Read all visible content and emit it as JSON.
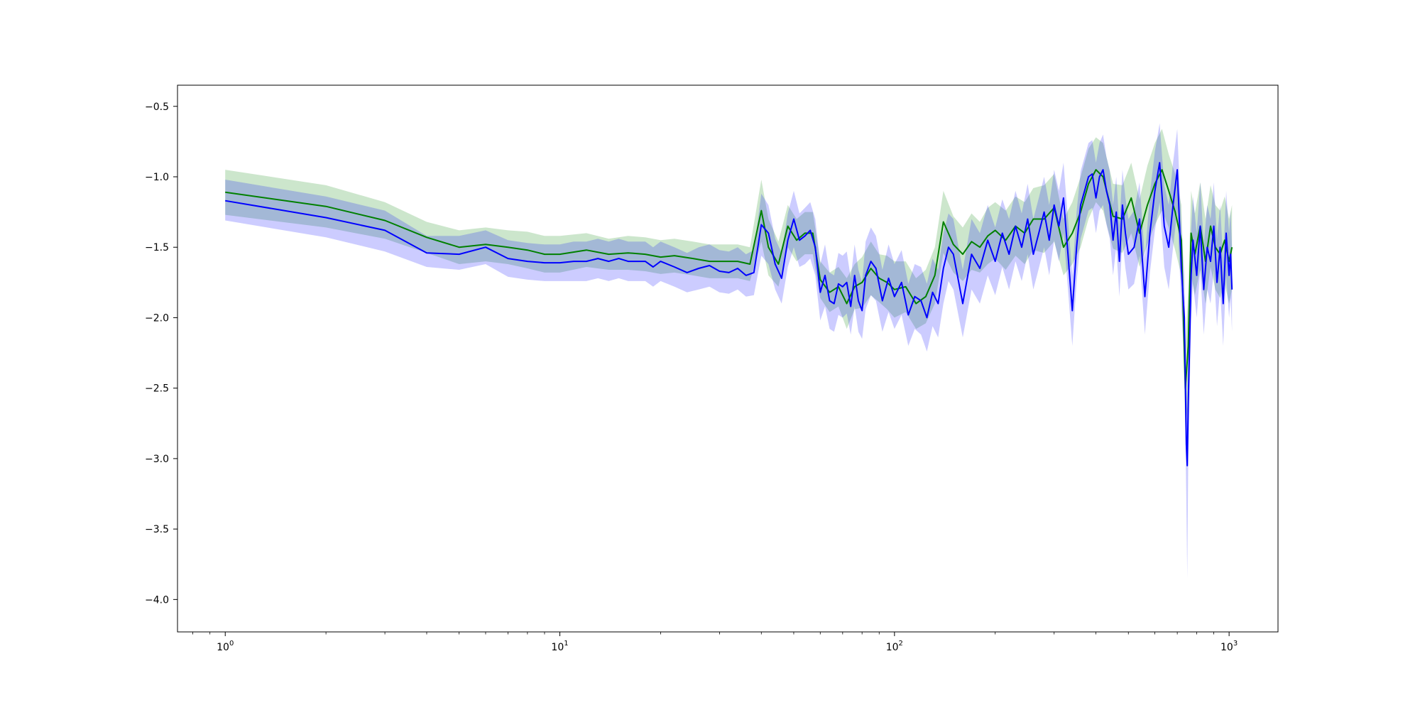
{
  "chart_data": {
    "type": "line",
    "title": "",
    "xlabel": "",
    "ylabel": "",
    "xscale": "log",
    "xlim": [
      0.72,
      1400
    ],
    "ylim": [
      -4.23,
      -0.35
    ],
    "grid": false,
    "legend": "none",
    "x_ticks": [
      {
        "value": 1,
        "base": "10",
        "exp": "0"
      },
      {
        "value": 10,
        "base": "10",
        "exp": "1"
      },
      {
        "value": 100,
        "base": "10",
        "exp": "2"
      },
      {
        "value": 1000,
        "base": "10",
        "exp": "3"
      }
    ],
    "y_ticks": [
      {
        "value": -0.5,
        "label": "−0.5"
      },
      {
        "value": -1.0,
        "label": "−1.0"
      },
      {
        "value": -1.5,
        "label": "−1.5"
      },
      {
        "value": -2.0,
        "label": "−2.0"
      },
      {
        "value": -2.5,
        "label": "−2.5"
      },
      {
        "value": -3.0,
        "label": "−3.0"
      },
      {
        "value": -3.5,
        "label": "−3.5"
      },
      {
        "value": -4.0,
        "label": "−4.0"
      }
    ],
    "series": [
      {
        "color": "#008000",
        "band_color": "#008000",
        "x": [
          1,
          2,
          3,
          4,
          5,
          6,
          7,
          8,
          9,
          10,
          12,
          14,
          16,
          18,
          20,
          22,
          25,
          28,
          31,
          34,
          37,
          40,
          42,
          45,
          48,
          51,
          54,
          57,
          60,
          64,
          68,
          72,
          76,
          80,
          85,
          90,
          95,
          100,
          108,
          116,
          124,
          132,
          140,
          150,
          160,
          170,
          180,
          190,
          200,
          215,
          230,
          245,
          260,
          280,
          300,
          320,
          340,
          360,
          380,
          400,
          420,
          450,
          480,
          510,
          540,
          570,
          600,
          630,
          660,
          690,
          720,
          740,
          755,
          770,
          790,
          820,
          850,
          880,
          910,
          940,
          970,
          1000,
          1020
        ],
        "y": [
          -1.11,
          -1.21,
          -1.31,
          -1.43,
          -1.5,
          -1.48,
          -1.5,
          -1.52,
          -1.55,
          -1.55,
          -1.52,
          -1.55,
          -1.54,
          -1.55,
          -1.57,
          -1.56,
          -1.58,
          -1.6,
          -1.6,
          -1.6,
          -1.62,
          -1.24,
          -1.5,
          -1.62,
          -1.35,
          -1.45,
          -1.4,
          -1.4,
          -1.73,
          -1.82,
          -1.78,
          -1.9,
          -1.78,
          -1.75,
          -1.65,
          -1.72,
          -1.75,
          -1.8,
          -1.78,
          -1.9,
          -1.85,
          -1.7,
          -1.32,
          -1.48,
          -1.55,
          -1.46,
          -1.5,
          -1.42,
          -1.38,
          -1.45,
          -1.35,
          -1.4,
          -1.3,
          -1.3,
          -1.22,
          -1.5,
          -1.4,
          -1.25,
          -1.05,
          -0.95,
          -1.0,
          -1.28,
          -1.3,
          -1.15,
          -1.4,
          -1.2,
          -1.05,
          -0.95,
          -1.1,
          -1.25,
          -1.45,
          -2.5,
          -2.2,
          -1.4,
          -1.55,
          -1.35,
          -1.6,
          -1.35,
          -1.5,
          -1.55,
          -1.45,
          -1.6,
          -1.5
        ],
        "upper": [
          -0.95,
          -1.06,
          -1.18,
          -1.32,
          -1.38,
          -1.36,
          -1.38,
          -1.39,
          -1.42,
          -1.42,
          -1.4,
          -1.44,
          -1.42,
          -1.43,
          -1.45,
          -1.44,
          -1.46,
          -1.48,
          -1.48,
          -1.48,
          -1.5,
          -1.02,
          -1.3,
          -1.46,
          -1.2,
          -1.3,
          -1.25,
          -1.25,
          -1.6,
          -1.68,
          -1.64,
          -1.72,
          -1.62,
          -1.57,
          -1.46,
          -1.55,
          -1.56,
          -1.6,
          -1.6,
          -1.72,
          -1.66,
          -1.5,
          -1.1,
          -1.28,
          -1.36,
          -1.26,
          -1.32,
          -1.22,
          -1.18,
          -1.24,
          -1.14,
          -1.18,
          -1.08,
          -1.06,
          -0.98,
          -1.3,
          -1.18,
          -1.0,
          -0.8,
          -0.72,
          -0.76,
          -1.05,
          -1.06,
          -0.9,
          -1.16,
          -0.92,
          -0.76,
          -0.66,
          -0.84,
          -0.98,
          -1.2,
          -2.2,
          -1.8,
          -1.1,
          -1.26,
          -1.04,
          -1.3,
          -1.06,
          -1.2,
          -1.24,
          -1.14,
          -1.3,
          -1.2
        ],
        "lower": [
          -1.27,
          -1.36,
          -1.44,
          -1.54,
          -1.62,
          -1.6,
          -1.62,
          -1.65,
          -1.68,
          -1.68,
          -1.64,
          -1.66,
          -1.66,
          -1.67,
          -1.69,
          -1.68,
          -1.7,
          -1.72,
          -1.72,
          -1.72,
          -1.74,
          -1.46,
          -1.7,
          -1.78,
          -1.5,
          -1.6,
          -1.55,
          -1.55,
          -1.86,
          -1.96,
          -1.92,
          -2.08,
          -1.94,
          -1.93,
          -1.84,
          -1.89,
          -1.94,
          -2.0,
          -1.96,
          -2.08,
          -2.04,
          -1.9,
          -1.54,
          -1.68,
          -1.74,
          -1.66,
          -1.68,
          -1.62,
          -1.58,
          -1.66,
          -1.56,
          -1.62,
          -1.52,
          -1.54,
          -1.46,
          -1.7,
          -1.62,
          -1.5,
          -1.3,
          -1.18,
          -1.24,
          -1.51,
          -1.54,
          -1.4,
          -1.64,
          -1.48,
          -1.34,
          -1.24,
          -1.36,
          -1.52,
          -1.7,
          -2.8,
          -2.6,
          -1.7,
          -1.84,
          -1.66,
          -1.9,
          -1.64,
          -1.8,
          -1.86,
          -1.76,
          -1.9,
          -1.8
        ]
      },
      {
        "color": "#0000ff",
        "band_color": "#0000ff",
        "x": [
          1,
          2,
          3,
          4,
          5,
          6,
          7,
          8,
          9,
          10,
          11,
          12,
          13,
          14,
          15,
          16,
          17,
          18,
          19,
          20,
          22,
          24,
          26,
          28,
          30,
          32,
          34,
          36,
          38,
          40,
          42,
          44,
          46,
          48,
          50,
          52,
          54,
          56,
          58,
          60,
          62,
          64,
          66,
          68,
          70,
          72,
          74,
          76,
          78,
          80,
          82,
          85,
          88,
          92,
          96,
          100,
          105,
          110,
          115,
          120,
          125,
          130,
          135,
          140,
          145,
          150,
          160,
          170,
          180,
          190,
          200,
          210,
          220,
          230,
          240,
          250,
          260,
          270,
          280,
          290,
          300,
          310,
          320,
          330,
          340,
          350,
          360,
          370,
          380,
          390,
          400,
          410,
          420,
          430,
          440,
          450,
          460,
          470,
          480,
          490,
          500,
          520,
          540,
          560,
          580,
          600,
          620,
          640,
          660,
          680,
          700,
          720,
          735,
          745,
          750,
          755,
          760,
          770,
          780,
          800,
          820,
          840,
          860,
          880,
          900,
          920,
          940,
          960,
          980,
          1000,
          1010,
          1020
        ],
        "y": [
          -1.17,
          -1.29,
          -1.38,
          -1.54,
          -1.55,
          -1.5,
          -1.58,
          -1.6,
          -1.61,
          -1.61,
          -1.6,
          -1.6,
          -1.58,
          -1.6,
          -1.58,
          -1.6,
          -1.6,
          -1.6,
          -1.64,
          -1.6,
          -1.64,
          -1.68,
          -1.65,
          -1.63,
          -1.67,
          -1.68,
          -1.65,
          -1.7,
          -1.68,
          -1.34,
          -1.4,
          -1.62,
          -1.72,
          -1.45,
          -1.3,
          -1.45,
          -1.42,
          -1.38,
          -1.5,
          -1.82,
          -1.7,
          -1.88,
          -1.9,
          -1.76,
          -1.78,
          -1.75,
          -1.92,
          -1.7,
          -1.88,
          -1.95,
          -1.7,
          -1.6,
          -1.65,
          -1.88,
          -1.72,
          -1.85,
          -1.75,
          -1.98,
          -1.85,
          -1.88,
          -2.0,
          -1.82,
          -1.9,
          -1.65,
          -1.5,
          -1.55,
          -1.9,
          -1.55,
          -1.65,
          -1.45,
          -1.6,
          -1.4,
          -1.55,
          -1.35,
          -1.5,
          -1.3,
          -1.55,
          -1.4,
          -1.25,
          -1.45,
          -1.2,
          -1.35,
          -1.15,
          -1.55,
          -1.95,
          -1.5,
          -1.2,
          -1.1,
          -1.0,
          -0.98,
          -1.15,
          -1.0,
          -0.95,
          -1.1,
          -1.2,
          -1.45,
          -1.25,
          -1.6,
          -1.2,
          -1.4,
          -1.55,
          -1.5,
          -1.3,
          -1.85,
          -1.4,
          -1.1,
          -0.9,
          -1.35,
          -1.5,
          -1.2,
          -0.95,
          -1.65,
          -2.0,
          -2.9,
          -3.05,
          -2.6,
          -2.3,
          -1.7,
          -1.45,
          -1.7,
          -1.35,
          -1.8,
          -1.5,
          -1.6,
          -1.35,
          -1.75,
          -1.5,
          -1.9,
          -1.4,
          -1.7,
          -1.55,
          -1.8
        ],
        "upper": [
          -1.02,
          -1.14,
          -1.24,
          -1.42,
          -1.42,
          -1.38,
          -1.45,
          -1.47,
          -1.48,
          -1.48,
          -1.46,
          -1.46,
          -1.44,
          -1.46,
          -1.44,
          -1.46,
          -1.46,
          -1.46,
          -1.5,
          -1.46,
          -1.5,
          -1.54,
          -1.5,
          -1.48,
          -1.52,
          -1.53,
          -1.5,
          -1.55,
          -1.52,
          -1.12,
          -1.2,
          -1.44,
          -1.54,
          -1.26,
          -1.1,
          -1.26,
          -1.22,
          -1.18,
          -1.3,
          -1.62,
          -1.48,
          -1.68,
          -1.7,
          -1.54,
          -1.56,
          -1.53,
          -1.72,
          -1.48,
          -1.66,
          -1.75,
          -1.46,
          -1.36,
          -1.42,
          -1.66,
          -1.48,
          -1.62,
          -1.52,
          -1.76,
          -1.62,
          -1.64,
          -1.76,
          -1.58,
          -1.66,
          -1.4,
          -1.26,
          -1.3,
          -1.66,
          -1.3,
          -1.4,
          -1.2,
          -1.36,
          -1.16,
          -1.3,
          -1.1,
          -1.26,
          -1.05,
          -1.3,
          -1.15,
          -1.0,
          -1.2,
          -0.95,
          -1.1,
          -0.9,
          -1.3,
          -1.7,
          -1.25,
          -0.96,
          -0.86,
          -0.76,
          -0.74,
          -0.9,
          -0.76,
          -0.7,
          -0.86,
          -0.96,
          -1.2,
          -1.0,
          -1.35,
          -0.95,
          -1.15,
          -1.3,
          -1.24,
          -1.04,
          -1.58,
          -1.12,
          -0.82,
          -0.62,
          -1.06,
          -1.2,
          -0.9,
          -0.66,
          -1.35,
          -1.7,
          -2.5,
          -2.65,
          -2.2,
          -1.9,
          -1.38,
          -1.14,
          -1.4,
          -1.04,
          -1.48,
          -1.2,
          -1.3,
          -1.04,
          -1.44,
          -1.2,
          -1.6,
          -1.1,
          -1.4,
          -1.24,
          -1.5
        ],
        "lower": [
          -1.31,
          -1.43,
          -1.53,
          -1.64,
          -1.66,
          -1.62,
          -1.71,
          -1.73,
          -1.74,
          -1.74,
          -1.74,
          -1.74,
          -1.72,
          -1.74,
          -1.72,
          -1.74,
          -1.74,
          -1.74,
          -1.78,
          -1.74,
          -1.78,
          -1.82,
          -1.8,
          -1.78,
          -1.82,
          -1.83,
          -1.8,
          -1.85,
          -1.84,
          -1.56,
          -1.62,
          -1.8,
          -1.9,
          -1.64,
          -1.5,
          -1.64,
          -1.62,
          -1.58,
          -1.7,
          -2.02,
          -1.92,
          -2.08,
          -2.1,
          -1.98,
          -2.0,
          -1.97,
          -2.12,
          -1.92,
          -2.1,
          -2.15,
          -1.94,
          -1.84,
          -1.88,
          -2.1,
          -1.96,
          -2.08,
          -1.98,
          -2.2,
          -2.08,
          -2.12,
          -2.24,
          -2.06,
          -2.14,
          -1.9,
          -1.74,
          -1.8,
          -2.14,
          -1.8,
          -1.9,
          -1.7,
          -1.84,
          -1.64,
          -1.8,
          -1.6,
          -1.74,
          -1.55,
          -1.8,
          -1.65,
          -1.5,
          -1.7,
          -1.45,
          -1.6,
          -1.4,
          -1.8,
          -2.2,
          -1.75,
          -1.44,
          -1.34,
          -1.24,
          -1.22,
          -1.4,
          -1.24,
          -1.2,
          -1.34,
          -1.44,
          -1.7,
          -1.5,
          -1.85,
          -1.45,
          -1.65,
          -1.8,
          -1.76,
          -1.56,
          -2.12,
          -1.68,
          -1.38,
          -1.18,
          -1.64,
          -1.8,
          -1.5,
          -1.24,
          -1.95,
          -2.3,
          -3.3,
          -3.85,
          -3.0,
          -2.7,
          -2.02,
          -1.76,
          -2.0,
          -1.66,
          -2.12,
          -1.8,
          -1.9,
          -1.66,
          -2.06,
          -1.8,
          -2.2,
          -1.7,
          -2.0,
          -1.86,
          -2.1
        ]
      }
    ]
  }
}
